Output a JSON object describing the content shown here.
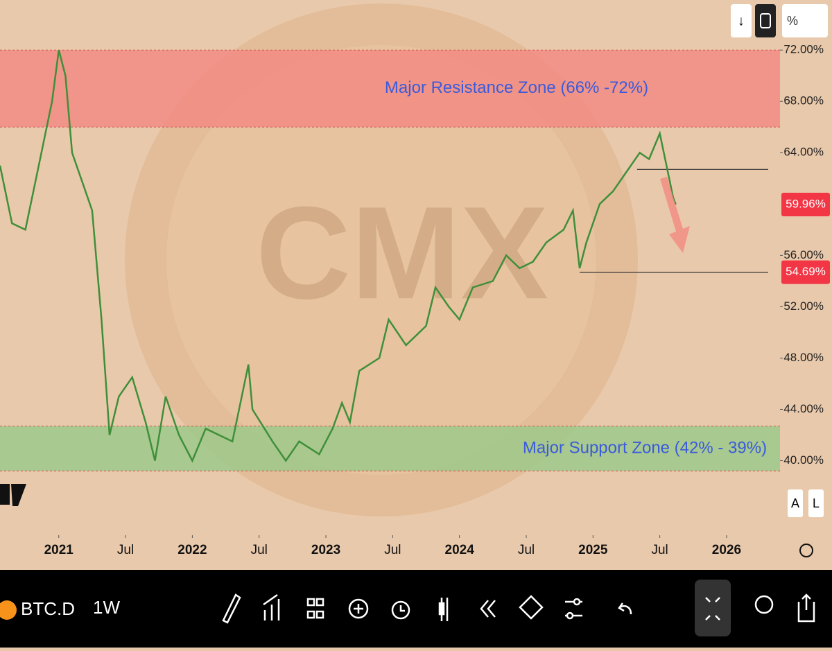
{
  "top_bar": {
    "unit": "%"
  },
  "chart_data": {
    "type": "line",
    "color": "#3f8f3a",
    "x": [
      2020.56,
      2020.65,
      2020.75,
      2020.85,
      2020.95,
      2021.0,
      2021.05,
      2021.1,
      2021.2,
      2021.25,
      2021.32,
      2021.38,
      2021.45,
      2021.55,
      2021.65,
      2021.72,
      2021.8,
      2021.9,
      2022.0,
      2022.1,
      2022.2,
      2022.3,
      2022.42,
      2022.45,
      2022.6,
      2022.7,
      2022.8,
      2022.95,
      2023.05,
      2023.12,
      2023.18,
      2023.25,
      2023.4,
      2023.47,
      2023.6,
      2023.75,
      2023.82,
      2023.92,
      2024.0,
      2024.1,
      2024.25,
      2024.35,
      2024.45,
      2024.55,
      2024.65,
      2024.78,
      2024.85,
      2024.9,
      2024.95,
      2025.05,
      2025.15,
      2025.25,
      2025.35,
      2025.42,
      2025.5,
      2025.55,
      2025.6,
      2025.62
    ],
    "values": [
      63,
      58.5,
      58,
      63,
      68,
      72,
      70,
      64,
      61,
      59.5,
      51,
      42,
      45,
      46.5,
      43,
      40,
      45,
      42,
      40,
      42.5,
      42,
      41.5,
      47.5,
      44,
      41.5,
      40,
      41.5,
      40.5,
      42.5,
      44.5,
      43,
      47,
      48,
      51,
      49,
      50.5,
      53.5,
      52,
      51,
      53.5,
      54,
      56,
      55,
      55.5,
      57,
      58,
      59.5,
      55,
      57,
      60,
      61,
      62.5,
      64,
      63.5,
      65.5,
      63,
      60.5,
      59.96
    ],
    "xlim": [
      2020.56,
      2026.4
    ],
    "xticks": [
      {
        "value": 2021,
        "label": "2021"
      },
      {
        "value": 2021.5,
        "label": "Jul"
      },
      {
        "value": 2022,
        "label": "2022"
      },
      {
        "value": 2022.5,
        "label": "Jul"
      },
      {
        "value": 2023,
        "label": "2023"
      },
      {
        "value": 2023.5,
        "label": "Jul"
      },
      {
        "value": 2024,
        "label": "2024"
      },
      {
        "value": 2024.5,
        "label": "Jul"
      },
      {
        "value": 2025,
        "label": "2025"
      },
      {
        "value": 2025.5,
        "label": "Jul"
      },
      {
        "value": 2026,
        "label": "2026"
      }
    ],
    "ylim": [
      34.3,
      75.9
    ],
    "yticks": [
      {
        "value": 40,
        "label": "40.00%"
      },
      {
        "value": 44,
        "label": "44.00%"
      },
      {
        "value": 48,
        "label": "48.00%"
      },
      {
        "value": 52,
        "label": "52.00%"
      },
      {
        "value": 56,
        "label": "56.00%"
      },
      {
        "value": 64,
        "label": "64.00%"
      },
      {
        "value": 68,
        "label": "68.00%"
      },
      {
        "value": 72,
        "label": "72.00%"
      }
    ],
    "zones": [
      {
        "label": "Major Resistance Zone  (66% -72%)",
        "range": [
          66,
          72
        ],
        "color": "#f28b82"
      },
      {
        "label": "Major Support Zone (42% - 39%)",
        "range": [
          39.2,
          42.7
        ],
        "color": "#9cc98a"
      }
    ],
    "levels": [
      {
        "value": 62.7,
        "start": 2025.33
      },
      {
        "value": 54.69,
        "start": 2024.9
      }
    ],
    "price_labels": [
      {
        "value": 59.96,
        "label": "59.96%"
      },
      {
        "value": 54.69,
        "label": "54.69%"
      }
    ]
  },
  "scale_buttons": [
    "A",
    "L"
  ],
  "footer": {
    "symbol": "BTC.D",
    "interval": "1W"
  }
}
